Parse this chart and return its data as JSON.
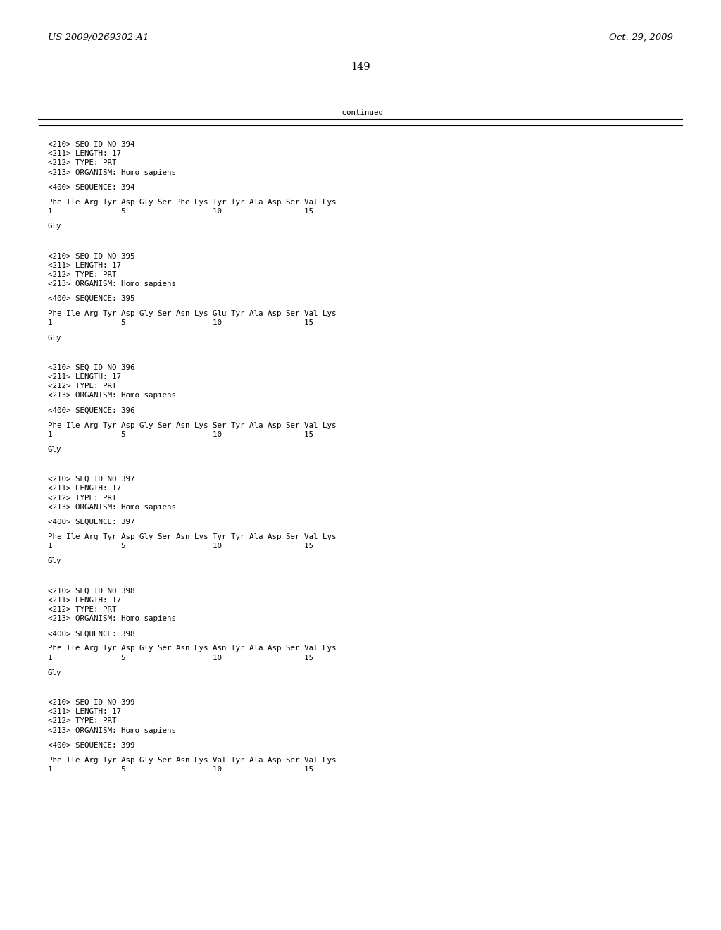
{
  "header_left": "US 2009/0269302 A1",
  "header_right": "Oct. 29, 2009",
  "page_number": "149",
  "continued_text": "-continued",
  "background_color": "#ffffff",
  "text_color": "#000000",
  "font_size_header": 9.5,
  "font_size_body": 7.8,
  "font_size_page": 10.5,
  "sections": [
    {
      "seq_id": "394",
      "length": "17",
      "type": "PRT",
      "organism": "Homo sapiens",
      "sequence_line": "Phe Ile Arg Tyr Asp Gly Ser Phe Lys Tyr Tyr Ala Asp Ser Val Lys",
      "numbering": "1               5                   10                  15",
      "continuation": "Gly"
    },
    {
      "seq_id": "395",
      "length": "17",
      "type": "PRT",
      "organism": "Homo sapiens",
      "sequence_line": "Phe Ile Arg Tyr Asp Gly Ser Asn Lys Glu Tyr Ala Asp Ser Val Lys",
      "numbering": "1               5                   10                  15",
      "continuation": "Gly"
    },
    {
      "seq_id": "396",
      "length": "17",
      "type": "PRT",
      "organism": "Homo sapiens",
      "sequence_line": "Phe Ile Arg Tyr Asp Gly Ser Asn Lys Ser Tyr Ala Asp Ser Val Lys",
      "numbering": "1               5                   10                  15",
      "continuation": "Gly"
    },
    {
      "seq_id": "397",
      "length": "17",
      "type": "PRT",
      "organism": "Homo sapiens",
      "sequence_line": "Phe Ile Arg Tyr Asp Gly Ser Asn Lys Tyr Tyr Ala Asp Ser Val Lys",
      "numbering": "1               5                   10                  15",
      "continuation": "Gly"
    },
    {
      "seq_id": "398",
      "length": "17",
      "type": "PRT",
      "organism": "Homo sapiens",
      "sequence_line": "Phe Ile Arg Tyr Asp Gly Ser Asn Lys Asn Tyr Ala Asp Ser Val Lys",
      "numbering": "1               5                   10                  15",
      "continuation": "Gly"
    },
    {
      "seq_id": "399",
      "length": "17",
      "type": "PRT",
      "organism": "Homo sapiens",
      "sequence_line": "Phe Ile Arg Tyr Asp Gly Ser Asn Lys Val Tyr Ala Asp Ser Val Lys",
      "numbering": "1               5                   10                  15",
      "continuation": ""
    }
  ]
}
